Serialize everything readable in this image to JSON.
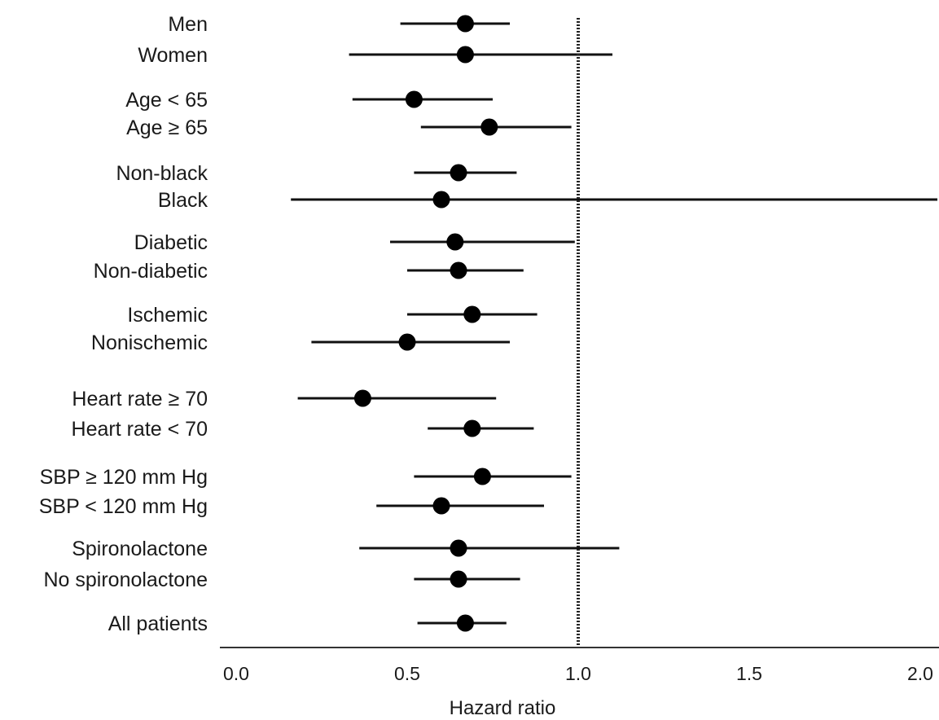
{
  "chart_data": {
    "type": "forest",
    "xlabel": "Hazard ratio",
    "xlim": [
      0.0,
      2.0
    ],
    "xticks": [
      "0.0",
      "0.5",
      "1.0",
      "1.5",
      "2.0"
    ],
    "reference_line": 1.0,
    "rows": [
      {
        "label": "Men",
        "hr": 0.67,
        "lo": 0.48,
        "hi": 0.8
      },
      {
        "label": "Women",
        "hr": 0.67,
        "lo": 0.33,
        "hi": 1.1
      },
      {
        "label": "Age < 65",
        "hr": 0.52,
        "lo": 0.34,
        "hi": 0.75
      },
      {
        "label": "Age ≥ 65",
        "hr": 0.74,
        "lo": 0.54,
        "hi": 0.98
      },
      {
        "label": "Non-black",
        "hr": 0.65,
        "lo": 0.52,
        "hi": 0.82
      },
      {
        "label": "Black",
        "hr": 0.6,
        "lo": 0.16,
        "hi": 2.05
      },
      {
        "label": "Diabetic",
        "hr": 0.64,
        "lo": 0.45,
        "hi": 0.99
      },
      {
        "label": "Non-diabetic",
        "hr": 0.65,
        "lo": 0.5,
        "hi": 0.84
      },
      {
        "label": "Ischemic",
        "hr": 0.69,
        "lo": 0.5,
        "hi": 0.88
      },
      {
        "label": "Nonischemic",
        "hr": 0.5,
        "lo": 0.22,
        "hi": 0.8
      },
      {
        "label": "Heart rate ≥ 70",
        "hr": 0.37,
        "lo": 0.18,
        "hi": 0.76
      },
      {
        "label": "Heart rate < 70",
        "hr": 0.69,
        "lo": 0.56,
        "hi": 0.87
      },
      {
        "label": "SBP ≥ 120 mm Hg",
        "hr": 0.72,
        "lo": 0.52,
        "hi": 0.98
      },
      {
        "label": "SBP < 120 mm Hg",
        "hr": 0.6,
        "lo": 0.41,
        "hi": 0.9
      },
      {
        "label": "Spironolactone",
        "hr": 0.65,
        "lo": 0.36,
        "hi": 1.12
      },
      {
        "label": "No spironolactone",
        "hr": 0.65,
        "lo": 0.52,
        "hi": 0.83
      },
      {
        "label": "All patients",
        "hr": 0.67,
        "lo": 0.53,
        "hi": 0.79
      }
    ]
  }
}
